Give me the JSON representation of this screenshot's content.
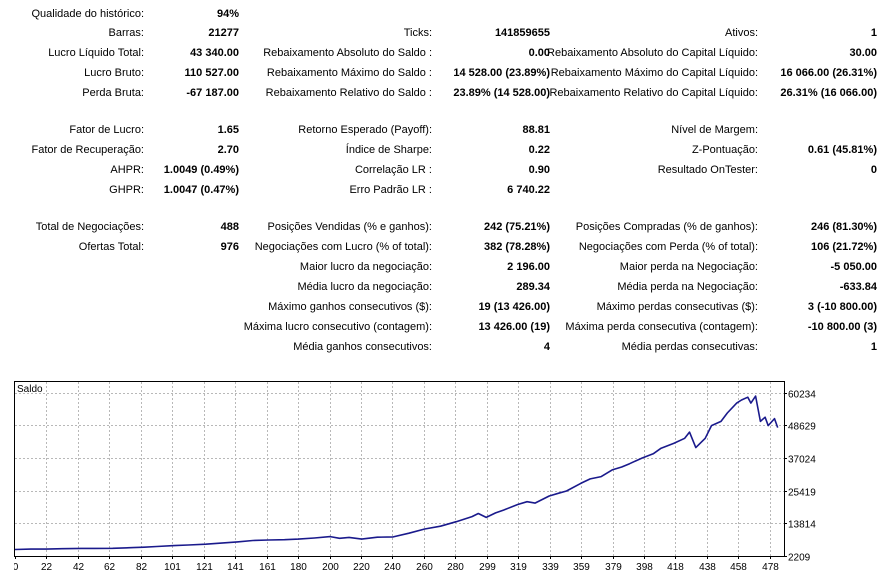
{
  "report": {
    "rows": [
      {
        "c1": {
          "label": "Qualidade do histórico:",
          "value": "94%"
        }
      },
      {
        "c1": {
          "label": "Barras:",
          "value": "21277"
        },
        "c2": {
          "label": "Ticks:",
          "value": "141859655"
        },
        "c3": {
          "label": "Ativos:",
          "value": "1"
        }
      },
      {
        "c1": {
          "label": "Lucro Líquido Total:",
          "value": "43 340.00"
        },
        "c2": {
          "label": "Rebaixamento Absoluto do Saldo :",
          "value": "0.00"
        },
        "c3": {
          "label": "Rebaixamento Absoluto do Capital Líquido:",
          "value": "30.00"
        }
      },
      {
        "c1": {
          "label": "Lucro Bruto:",
          "value": "110 527.00"
        },
        "c2": {
          "label": "Rebaixamento Máximo do Saldo :",
          "value": "14 528.00 (23.89%)"
        },
        "c3": {
          "label": "Rebaixamento Máximo do Capital Líquido:",
          "value": "16 066.00 (26.31%)"
        }
      },
      {
        "c1": {
          "label": "Perda Bruta:",
          "value": "-67 187.00"
        },
        "c2": {
          "label": "Rebaixamento Relativo do Saldo :",
          "value": "23.89% (14 528.00)"
        },
        "c3": {
          "label": "Rebaixamento Relativo do Capital Líquido:",
          "value": "26.31% (16 066.00)"
        }
      },
      {},
      {
        "c1": {
          "label": "Fator de Lucro:",
          "value": "1.65"
        },
        "c2": {
          "label": "Retorno Esperado (Payoff):",
          "value": "88.81"
        },
        "c3": {
          "label": "Nível de Margem:",
          "value": ""
        }
      },
      {
        "c1": {
          "label": "Fator de Recuperação:",
          "value": "2.70"
        },
        "c2": {
          "label": "Índice de Sharpe:",
          "value": "0.22"
        },
        "c3": {
          "label": "Z-Pontuação:",
          "value": "0.61 (45.81%)"
        }
      },
      {
        "c1": {
          "label": "AHPR:",
          "value": "1.0049 (0.49%)"
        },
        "c2": {
          "label": "Correlação LR :",
          "value": "0.90"
        },
        "c3": {
          "label": "Resultado OnTester:",
          "value": "0"
        }
      },
      {
        "c1": {
          "label": "GHPR:",
          "value": "1.0047 (0.47%)"
        },
        "c2": {
          "label": "Erro Padrão LR :",
          "value": "6 740.22"
        }
      },
      {},
      {
        "c1": {
          "label": "Total de Negociações:",
          "value": "488"
        },
        "c2": {
          "label": "Posições Vendidas (% e ganhos):",
          "value": "242 (75.21%)"
        },
        "c3": {
          "label": "Posições Compradas (% de ganhos):",
          "value": "246 (81.30%)"
        }
      },
      {
        "c1": {
          "label": "Ofertas Total:",
          "value": "976"
        },
        "c2": {
          "label": "Negociações com Lucro (% of total):",
          "value": "382 (78.28%)"
        },
        "c3": {
          "label": "Negociações com Perda (% of total):",
          "value": "106 (21.72%)"
        }
      },
      {
        "c2": {
          "label": "Maior lucro da negociação:",
          "value": "2 196.00"
        },
        "c3": {
          "label": "Maior perda na Negociação:",
          "value": "-5 050.00"
        }
      },
      {
        "c2": {
          "label": "Média lucro da negociação:",
          "value": "289.34"
        },
        "c3": {
          "label": "Média perda na Negociação:",
          "value": "-633.84"
        }
      },
      {
        "c2": {
          "label": "Máximo ganhos consecutivos ($):",
          "value": "19 (13 426.00)"
        },
        "c3": {
          "label": "Máximo perdas consecutivas ($):",
          "value": "3 (-10 800.00)"
        }
      },
      {
        "c2": {
          "label": "Máxima lucro consecutivo (contagem):",
          "value": "13 426.00 (19)"
        },
        "c3": {
          "label": "Máxima perda consecutiva (contagem):",
          "value": "-10 800.00 (3)"
        }
      },
      {
        "c2": {
          "label": "Média ganhos consecutivos:",
          "value": "4"
        },
        "c3": {
          "label": "Média perdas consecutivas:",
          "value": "1"
        }
      }
    ]
  },
  "chart_data": {
    "type": "line",
    "title": "Saldo",
    "line_color": "#1a1a8c",
    "grid": true,
    "grid_color": "#b8b8b8",
    "y_ticks": [
      "60234",
      "48629",
      "37024",
      "25419",
      "13814",
      "2209"
    ],
    "y_tick_values": [
      60234,
      48629,
      37024,
      25419,
      13814,
      2209
    ],
    "x_ticks": [
      "0",
      "22",
      "42",
      "62",
      "82",
      "101",
      "121",
      "141",
      "161",
      "180",
      "200",
      "220",
      "240",
      "260",
      "280",
      "299",
      "319",
      "339",
      "359",
      "379",
      "398",
      "418",
      "438",
      "458",
      "478"
    ],
    "xlim": [
      0,
      488
    ],
    "ylim": [
      2209,
      64000
    ],
    "series": [
      {
        "x": [
          0,
          10,
          20,
          30,
          42,
          50,
          62,
          75,
          82,
          90,
          101,
          110,
          121,
          131,
          141,
          151,
          161,
          171,
          180,
          190,
          200,
          206,
          212,
          220,
          230,
          240,
          250,
          260,
          270,
          280,
          290,
          294,
          299,
          305,
          310,
          319,
          325,
          330,
          339,
          345,
          350,
          359,
          365,
          372,
          379,
          385,
          390,
          398,
          405,
          410,
          418,
          425,
          428,
          432,
          438,
          442,
          448,
          452,
          458,
          461,
          465,
          467,
          470,
          473,
          476,
          478,
          482,
          484
        ],
        "y": [
          4500,
          4650,
          4650,
          4800,
          4900,
          4900,
          4950,
          5200,
          5350,
          5600,
          5900,
          6100,
          6400,
          6800,
          7200,
          7700,
          7900,
          8000,
          8200,
          8600,
          9100,
          8500,
          8800,
          8200,
          8900,
          9000,
          10300,
          11800,
          12800,
          14400,
          16200,
          17300,
          15900,
          17500,
          18500,
          20500,
          21500,
          21000,
          23500,
          24500,
          25300,
          28000,
          29600,
          30400,
          32800,
          33800,
          35000,
          37000,
          38500,
          40500,
          42200,
          44000,
          46200,
          40700,
          44000,
          48500,
          50000,
          53000,
          56500,
          57600,
          58600,
          56500,
          59000,
          50000,
          51500,
          48500,
          51000,
          47800
        ]
      }
    ]
  }
}
